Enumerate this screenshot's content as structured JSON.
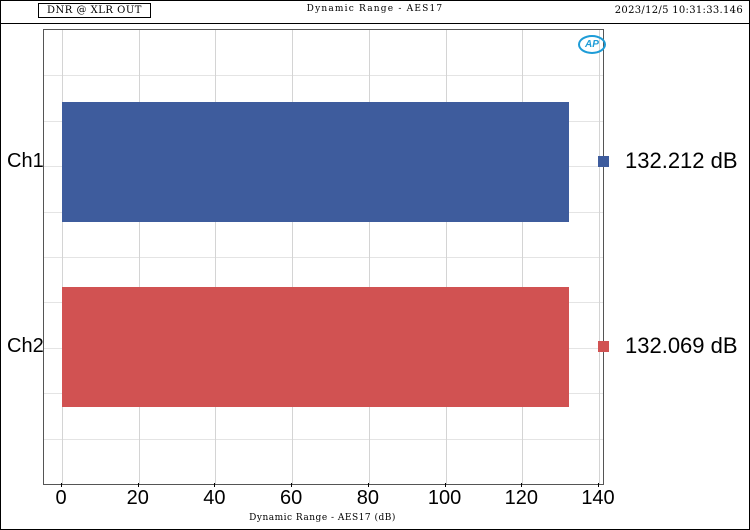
{
  "header": {
    "left_title": "DNR @ XLR OUT",
    "center_title": "Dynamic Range - AES17",
    "timestamp": "2023/12/5 10:31:33.146"
  },
  "logo": {
    "label": "AP"
  },
  "chart_data": {
    "type": "bar",
    "orientation": "horizontal",
    "title": "Dynamic Range - AES17",
    "categories": [
      "Ch1",
      "Ch2"
    ],
    "values": [
      132.212,
      132.069
    ],
    "value_labels": [
      "132.212 dB",
      "132.069 dB"
    ],
    "bar_colors": [
      "#3e5c9d",
      "#d15252"
    ],
    "xlabel": "Dynamic Range - AES17 (dB)",
    "xlim": [
      0,
      140
    ],
    "xticks": [
      0,
      20,
      40,
      60,
      80,
      100,
      120,
      140
    ],
    "grid": true,
    "legend_position": "right-of-bars"
  }
}
